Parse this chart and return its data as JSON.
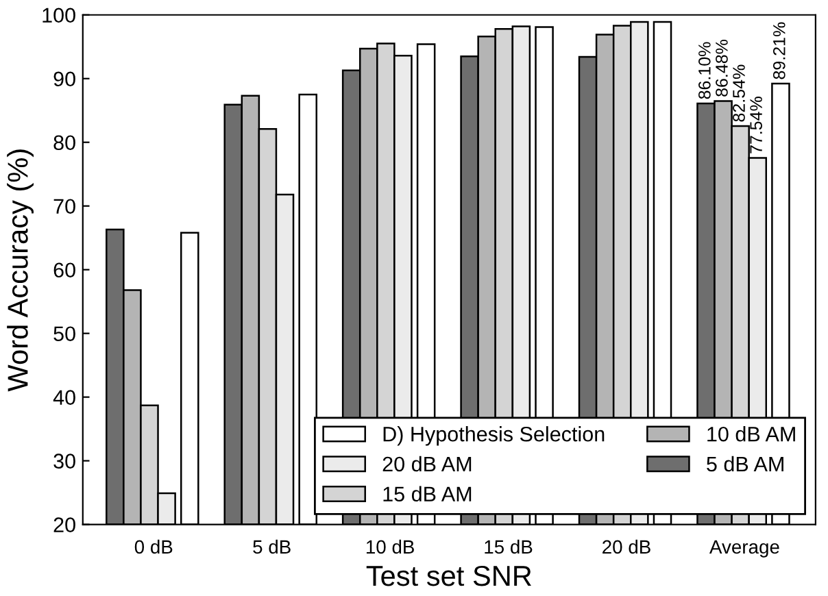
{
  "chart_data": {
    "type": "bar",
    "xlabel": "Test set SNR",
    "ylabel": "Word Accuracy (%)",
    "categories": [
      "0 dB",
      "5 dB",
      "10 dB",
      "15 dB",
      "20 dB",
      "Average"
    ],
    "series": [
      {
        "name": "5 dB AM",
        "color": "#6e6e6e",
        "values": [
          66.3,
          85.9,
          91.3,
          93.5,
          93.4,
          86.1
        ],
        "value_labels": [
          null,
          null,
          null,
          null,
          null,
          "86.10%"
        ]
      },
      {
        "name": "10 dB AM",
        "color": "#b4b4b4",
        "values": [
          56.8,
          87.3,
          94.7,
          96.6,
          96.9,
          86.48
        ],
        "value_labels": [
          null,
          null,
          null,
          null,
          null,
          "86.48%"
        ]
      },
      {
        "name": "15 dB AM",
        "color": "#d4d4d4",
        "values": [
          38.7,
          82.1,
          95.5,
          97.8,
          98.3,
          82.54
        ],
        "value_labels": [
          null,
          null,
          null,
          null,
          null,
          "82.54%"
        ]
      },
      {
        "name": "20 dB AM",
        "color": "#ebebeb",
        "values": [
          24.9,
          71.8,
          93.6,
          98.2,
          98.9,
          77.54
        ],
        "value_labels": [
          null,
          null,
          null,
          null,
          null,
          "77.54%"
        ]
      },
      {
        "name": "D) Hypothesis Selection",
        "color": "#ffffff",
        "values": [
          65.8,
          87.5,
          95.4,
          98.1,
          98.9,
          89.21
        ],
        "value_labels": [
          null,
          null,
          null,
          null,
          null,
          "89.21%"
        ]
      }
    ],
    "ylim": [
      20,
      100
    ],
    "yticks": [
      20,
      30,
      40,
      50,
      60,
      70,
      80,
      90,
      100
    ],
    "grid": false,
    "legend": "bottom right"
  }
}
